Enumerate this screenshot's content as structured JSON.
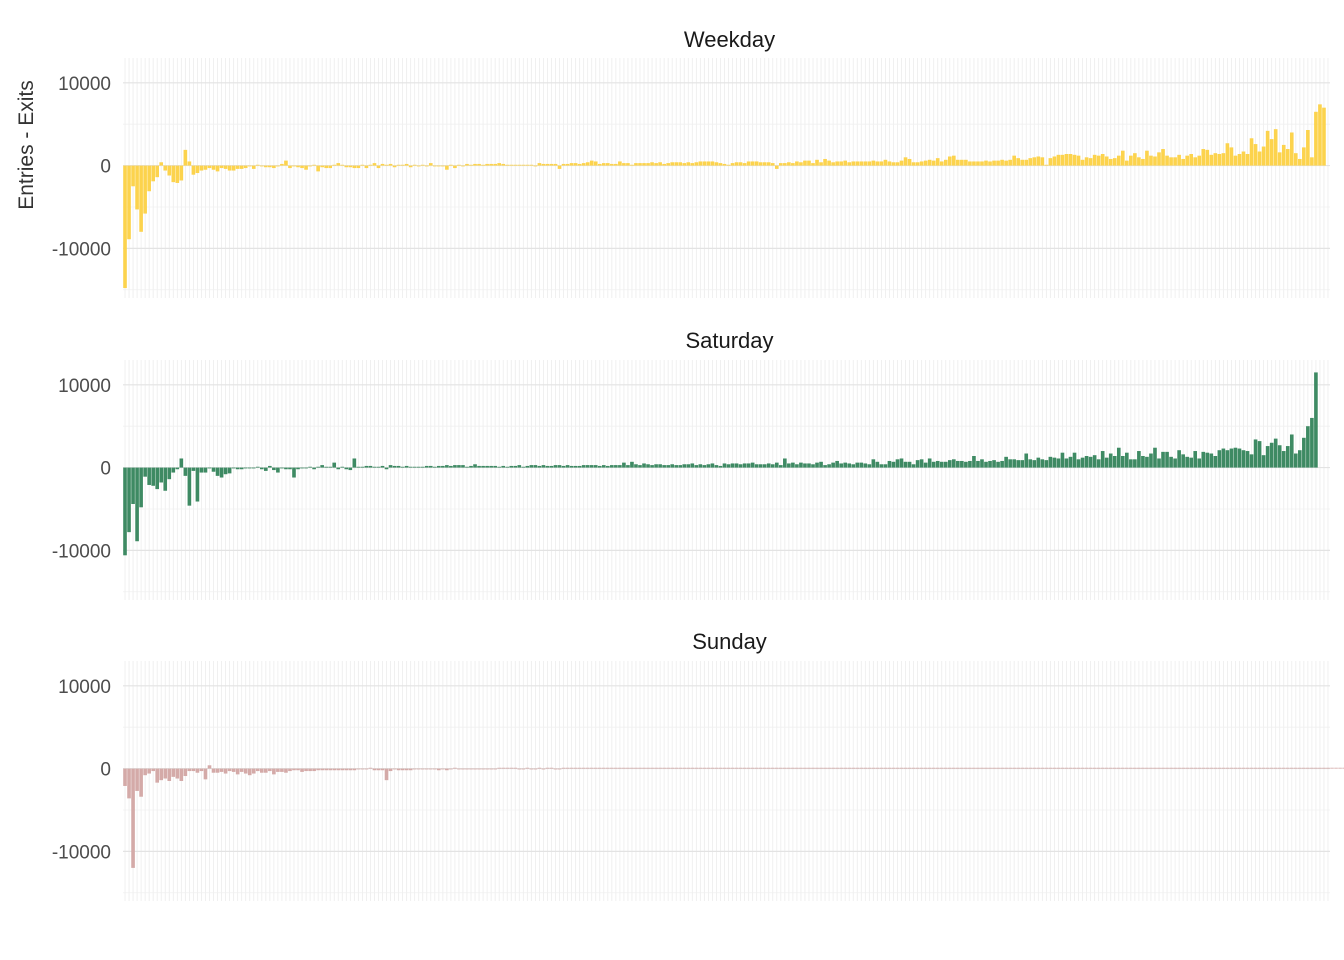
{
  "chart_data": {
    "type": "bar",
    "ylabel": "Entries - Exits",
    "xlabel": "",
    "ylim": [
      -16000,
      13000
    ],
    "yticks": [
      10000,
      0,
      -10000
    ],
    "ytick_labels": [
      "10000",
      "0",
      "-10000"
    ],
    "grid": true,
    "legend": "none",
    "n_bars": 300,
    "panels": [
      {
        "name": "Weekday",
        "color": "#FCD34D",
        "values": [
          -14800,
          -8900,
          -2500,
          -5300,
          -8000,
          -5800,
          -3100,
          -1900,
          -1400,
          400,
          -600,
          -1200,
          -2000,
          -2100,
          -1800,
          1900,
          500,
          -1100,
          -900,
          -600,
          -500,
          -300,
          -500,
          -700,
          -300,
          -400,
          -600,
          -600,
          -400,
          -400,
          -300,
          -100,
          -400,
          100,
          -100,
          -200,
          -200,
          -300,
          -100,
          200,
          600,
          -300,
          -100,
          -200,
          -300,
          -500,
          -100,
          100,
          -700,
          -200,
          -300,
          -300,
          100,
          300,
          100,
          -200,
          -200,
          -300,
          -300,
          100,
          -300,
          100,
          300,
          -300,
          200,
          100,
          200,
          -200,
          100,
          100,
          200,
          -200,
          100,
          -100,
          100,
          -100,
          300,
          -100,
          -100,
          -100,
          -500,
          100,
          -300,
          100,
          -100,
          200,
          100,
          200,
          200,
          100,
          200,
          200,
          200,
          300,
          200,
          100,
          100,
          100,
          100,
          100,
          100,
          100,
          -100,
          300,
          200,
          200,
          200,
          200,
          -400,
          200,
          200,
          300,
          300,
          200,
          300,
          400,
          600,
          500,
          200,
          300,
          300,
          200,
          200,
          500,
          300,
          300,
          100,
          300,
          300,
          300,
          300,
          400,
          300,
          400,
          200,
          300,
          400,
          400,
          400,
          300,
          400,
          300,
          400,
          500,
          500,
          500,
          500,
          400,
          300,
          200,
          100,
          300,
          400,
          400,
          300,
          500,
          500,
          500,
          400,
          400,
          400,
          300,
          -400,
          300,
          300,
          400,
          300,
          500,
          400,
          600,
          600,
          300,
          700,
          400,
          800,
          600,
          400,
          500,
          500,
          600,
          400,
          500,
          500,
          500,
          500,
          500,
          600,
          500,
          500,
          700,
          500,
          400,
          400,
          600,
          1000,
          800,
          400,
          400,
          500,
          600,
          700,
          600,
          900,
          500,
          700,
          1100,
          1200,
          700,
          700,
          700,
          500,
          500,
          500,
          500,
          600,
          500,
          600,
          600,
          700,
          600,
          700,
          1200,
          900,
          700,
          700,
          900,
          1000,
          1100,
          1000,
          100,
          900,
          1100,
          1300,
          1300,
          1400,
          1400,
          1300,
          1200,
          700,
          1000,
          900,
          1300,
          1200,
          1400,
          1100,
          800,
          900,
          1200,
          1800,
          600,
          1200,
          1500,
          1000,
          800,
          1800,
          1200,
          1100,
          1600,
          2000,
          1200,
          1000,
          1000,
          1300,
          800,
          1200,
          1400,
          1000,
          1200,
          2000,
          1900,
          1300,
          1500,
          1400,
          1500,
          2700,
          2200,
          1200,
          1400,
          1700,
          1400,
          3300,
          2600,
          1700,
          2300,
          4200,
          3200,
          4400,
          1600,
          2500,
          2000,
          4000,
          1500,
          800,
          2200,
          4300,
          1000,
          6500,
          7400,
          7000
        ]
      },
      {
        "name": "Saturday",
        "color": "#3E8A63",
        "values": [
          -10600,
          -7800,
          -4400,
          -8900,
          -4800,
          -1100,
          -2100,
          -2200,
          -2600,
          -1800,
          -2800,
          -1400,
          -600,
          -200,
          1100,
          -1000,
          -4600,
          -400,
          -4100,
          -600,
          -600,
          -100,
          -500,
          -1000,
          -1200,
          -800,
          -700,
          -100,
          -200,
          -200,
          -100,
          -100,
          -100,
          100,
          -200,
          -400,
          200,
          -300,
          -600,
          -100,
          -200,
          -200,
          -1200,
          -200,
          -100,
          -100,
          100,
          -200,
          100,
          300,
          100,
          100,
          600,
          -200,
          100,
          -200,
          -300,
          1100,
          100,
          100,
          200,
          200,
          100,
          100,
          200,
          -200,
          300,
          200,
          200,
          100,
          200,
          100,
          100,
          100,
          100,
          200,
          200,
          100,
          200,
          200,
          300,
          200,
          300,
          300,
          300,
          100,
          200,
          400,
          200,
          200,
          200,
          200,
          200,
          100,
          200,
          100,
          200,
          200,
          300,
          100,
          200,
          300,
          300,
          200,
          300,
          200,
          200,
          300,
          300,
          200,
          300,
          200,
          200,
          200,
          300,
          300,
          300,
          300,
          200,
          300,
          200,
          300,
          300,
          300,
          600,
          300,
          700,
          400,
          300,
          500,
          400,
          300,
          400,
          400,
          300,
          300,
          400,
          300,
          300,
          400,
          400,
          500,
          300,
          400,
          300,
          400,
          500,
          300,
          200,
          500,
          400,
          500,
          500,
          400,
          500,
          500,
          600,
          400,
          400,
          400,
          500,
          400,
          600,
          300,
          1100,
          500,
          600,
          400,
          600,
          500,
          500,
          400,
          600,
          700,
          300,
          400,
          600,
          800,
          500,
          600,
          500,
          400,
          600,
          600,
          500,
          400,
          1000,
          700,
          400,
          400,
          800,
          700,
          1000,
          1100,
          700,
          700,
          400,
          900,
          1000,
          600,
          1100,
          700,
          800,
          700,
          700,
          900,
          1000,
          800,
          800,
          700,
          800,
          1400,
          800,
          1000,
          700,
          800,
          900,
          700,
          800,
          1300,
          1000,
          1000,
          900,
          900,
          1700,
          1000,
          900,
          1200,
          1000,
          900,
          1300,
          1200,
          1100,
          1800,
          1100,
          1300,
          1800,
          1000,
          1200,
          1400,
          1300,
          1500,
          1000,
          2000,
          1200,
          1700,
          1400,
          2400,
          1400,
          1800,
          1000,
          1000,
          2000,
          1400,
          1300,
          1700,
          2400,
          1100,
          1900,
          1900,
          1300,
          1100,
          2100,
          1600,
          1300,
          1200,
          2000,
          1100,
          1900,
          1800,
          1700,
          1400,
          2100,
          2300,
          2100,
          2300,
          2400,
          2300,
          2100,
          2000,
          1600,
          3400,
          3200,
          1500,
          2600,
          3000,
          3500,
          2700,
          2000,
          2600,
          4000,
          1700,
          2100,
          3600,
          5000,
          6000,
          11500
        ]
      },
      {
        "name": "Sunday",
        "color": "#D4AAA8",
        "values": [
          -2100,
          -3600,
          -12000,
          -2700,
          -3400,
          -800,
          -600,
          -300,
          -1700,
          -1400,
          -1200,
          -1500,
          -1000,
          -1200,
          -1500,
          -900,
          -300,
          -300,
          -500,
          -300,
          -1300,
          400,
          -500,
          -500,
          -400,
          -600,
          -300,
          -400,
          -700,
          -400,
          -600,
          -800,
          -600,
          -300,
          -500,
          -500,
          -300,
          -700,
          -400,
          -400,
          -500,
          -300,
          -200,
          -200,
          -400,
          -300,
          -300,
          -300,
          -200,
          -200,
          -200,
          -200,
          -200,
          -200,
          -200,
          -200,
          -200,
          -200,
          -100,
          -100,
          -100,
          100,
          -200,
          -200,
          -200,
          -1400,
          -300,
          -100,
          -200,
          -200,
          -200,
          -200,
          -100,
          -100,
          -100,
          -100,
          -100,
          -100,
          -200,
          -100,
          -200,
          -100,
          100,
          -100,
          -100,
          -100,
          -100,
          -100,
          -100,
          -100,
          -100,
          -100,
          -100,
          100,
          100,
          100,
          100,
          100,
          -100,
          -100,
          100,
          -100,
          -100,
          100,
          -100,
          100,
          100,
          -100,
          -100,
          100,
          100,
          100,
          100,
          100,
          100,
          100,
          100,
          100,
          100,
          100,
          100,
          100,
          100,
          100,
          100,
          100,
          100,
          100,
          100,
          100,
          100,
          100,
          100,
          100,
          100,
          100,
          100,
          100,
          100,
          100,
          100,
          100,
          100,
          100,
          100,
          100,
          100,
          100,
          100,
          100,
          100,
          100,
          100,
          100,
          100,
          100,
          100,
          100,
          100,
          100,
          100,
          100,
          100,
          100,
          100,
          100,
          100,
          100,
          100,
          100,
          100,
          100,
          100,
          100,
          100,
          100,
          100,
          100,
          100,
          100,
          100,
          100,
          100,
          100,
          100,
          100,
          100,
          100,
          100,
          100,
          100,
          100,
          100,
          100,
          100,
          100,
          100,
          100,
          100,
          100,
          100,
          100,
          100,
          100,
          100,
          100,
          100,
          100,
          100,
          100,
          100,
          100,
          100,
          100,
          100,
          100,
          100,
          100,
          100,
          100,
          100,
          100,
          100,
          100,
          100,
          100,
          100,
          100,
          100,
          100,
          100,
          100,
          100,
          100,
          100,
          100,
          100,
          100,
          100,
          100,
          100,
          100,
          100,
          100,
          100,
          100,
          100,
          100,
          100,
          100,
          100,
          100,
          100,
          100,
          100,
          100,
          100,
          100,
          100,
          100,
          100,
          100,
          100,
          100,
          100,
          100,
          100,
          100,
          100,
          100,
          100,
          100,
          100,
          100,
          100,
          100,
          100,
          100,
          100,
          100,
          100,
          100,
          100,
          100,
          100,
          100,
          100,
          100,
          100,
          100,
          100,
          100,
          100,
          100,
          100,
          100,
          100,
          100,
          100,
          100,
          100,
          100,
          100,
          100,
          100,
          100,
          100,
          100,
          100
        ]
      }
    ]
  }
}
